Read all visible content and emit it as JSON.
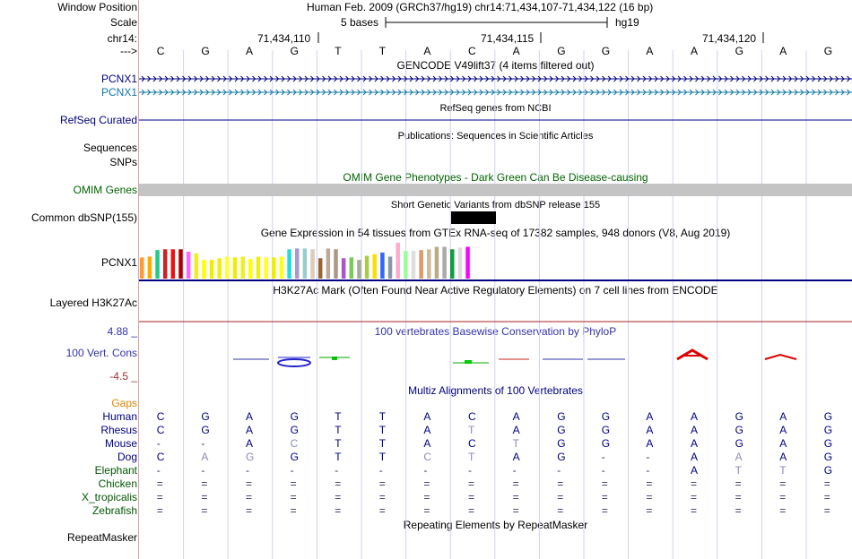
{
  "ruler": {
    "window_position_label": "Window Position",
    "window_position_value": "Human Feb. 2009 (GRCh37/hg19)   chr14:71,434,107-71,434,122 (16 bp)",
    "scale_label": "Scale",
    "scale_value": "5 bases",
    "scale_assembly": "hg19",
    "chrom_label": "chr14:",
    "strand_label": "--->",
    "positions": [
      "71,434,110",
      "71,434,115",
      "71,434,120"
    ]
  },
  "bases": [
    "C",
    "G",
    "A",
    "G",
    "T",
    "T",
    "A",
    "C",
    "A",
    "G",
    "G",
    "A",
    "A",
    "G",
    "A",
    "G"
  ],
  "tracks": {
    "gencode_title": "GENCODE V49lift37 (4 items filtered out)",
    "gencode_items": [
      "PCNX1",
      "PCNX1"
    ],
    "refseq_label": "RefSeq Curated",
    "refseq_title": "RefSeq genes from NCBI",
    "publications_title": "Publications: Sequences in Scientific Articles",
    "sequences_label": "Sequences",
    "snps_label": "SNPs",
    "omim_title": "OMIM Gene Phenotypes - Dark Green Can Be Disease-causing",
    "omim_label": "OMIM Genes",
    "dbsnp_title": "Short Genetic Variants from dbSNP release 155",
    "dbsnp_label": "Common dbSNP(155)",
    "gtex_title": "Gene Expression in 54 tissues from GTEx RNA-seq of 17382 samples, 948 donors (V8, Aug 2019)",
    "gtex_label": "PCNX1",
    "h3k27ac_title": "H3K27Ac Mark (Often Found Near Active Regulatory Elements) on 7 cell lines from ENCODE",
    "h3k27ac_label": "Layered H3K27Ac",
    "phylop_title": "100 vertebrates Basewise Conservation by PhyloP",
    "phylop_label": "100 Vert. Cons",
    "phylop_max": "4.88 _",
    "phylop_min": "-4.5 _",
    "multiz_title": "Multiz Alignments of 100 Vertebrates",
    "gaps_label": "Gaps",
    "repeatmasker_title": "Repeating Elements by RepeatMasker",
    "repeatmasker_label": "RepeatMasker"
  },
  "gtex_colors": [
    "#ff9933",
    "#ffaa00",
    "#22cc88",
    "#cc2222",
    "#ee1111",
    "#aa0000",
    "#ff66ff",
    "#eeee22",
    "#ffff00",
    "#eeee00",
    "#eeee11",
    "#ffff33",
    "#eeee00",
    "#eeee22",
    "#ffff00",
    "#eeee11",
    "#ffff22",
    "#eeee00",
    "#ffff11",
    "#22dddd",
    "#aa99cc",
    "#99cccc",
    "#ddccbb",
    "#996633",
    "#bbaa99",
    "#aa9988",
    "#aa55cc",
    "#77cc55",
    "#aaaa99",
    "#aacc44",
    "#ffdd00",
    "#3366ff",
    "#8899aa",
    "#ffaacc",
    "#99ff99",
    "#dddddd",
    "#dd9966",
    "#ccbb99",
    "#bbaa88",
    "#aaaaaa",
    "#119944",
    "#dddddd",
    "#ff00ff"
  ],
  "gtex_values": [
    26,
    27,
    35,
    36,
    36,
    36,
    33,
    31,
    23,
    23,
    25,
    27,
    26,
    27,
    24,
    27,
    26,
    26,
    27,
    36,
    37,
    37,
    36,
    25,
    37,
    36,
    25,
    26,
    23,
    28,
    30,
    32,
    27,
    44,
    34,
    34,
    35,
    36,
    39,
    39,
    36,
    38,
    39
  ],
  "alignments": [
    {
      "species": "Human",
      "bases": [
        "C",
        "G",
        "A",
        "G",
        "T",
        "T",
        "A",
        "C",
        "A",
        "G",
        "G",
        "A",
        "A",
        "G",
        "A",
        "G"
      ]
    },
    {
      "species": "Rhesus",
      "bases": [
        "C",
        "G",
        "A",
        "G",
        "T",
        "T",
        "A",
        "T",
        "A",
        "G",
        "G",
        "A",
        "A",
        "G",
        "A",
        "G"
      ]
    },
    {
      "species": "Mouse",
      "bases": [
        "-",
        "-",
        "A",
        "C",
        "T",
        "T",
        "A",
        "C",
        "T",
        "G",
        "G",
        "A",
        "A",
        "G",
        "A",
        "G"
      ]
    },
    {
      "species": "Dog",
      "bases": [
        "C",
        "A",
        "G",
        "G",
        "T",
        "T",
        "C",
        "T",
        "A",
        "G",
        "-",
        "-",
        "A",
        "A",
        "A",
        "G"
      ]
    },
    {
      "species": "Elephant",
      "bases": [
        "-",
        "-",
        "-",
        "-",
        "-",
        "-",
        "-",
        "-",
        "-",
        "-",
        "-",
        "-",
        "A",
        "T",
        "T",
        "G"
      ]
    },
    {
      "species": "Chicken",
      "bases": [
        "=",
        "=",
        "=",
        "=",
        "=",
        "=",
        "=",
        "=",
        "=",
        "=",
        "=",
        "=",
        "=",
        "=",
        "=",
        "="
      ]
    },
    {
      "species": "X_tropicalis",
      "bases": [
        "=",
        "=",
        "=",
        "=",
        "=",
        "=",
        "=",
        "=",
        "=",
        "=",
        "=",
        "=",
        "=",
        "=",
        "=",
        "="
      ]
    },
    {
      "species": "Zebrafish",
      "bases": [
        "=",
        "=",
        "=",
        "=",
        "=",
        "=",
        "=",
        "=",
        "=",
        "=",
        "=",
        "=",
        "=",
        "=",
        "=",
        "="
      ]
    }
  ],
  "colors": {
    "gencode_dark": "#000080",
    "gencode_light": "#0f77a8",
    "omim": "#006400",
    "phylop": "#3333aa",
    "gaps": "#dd8800",
    "species": "#005500",
    "h3k27ac_line": "#aa2222"
  }
}
